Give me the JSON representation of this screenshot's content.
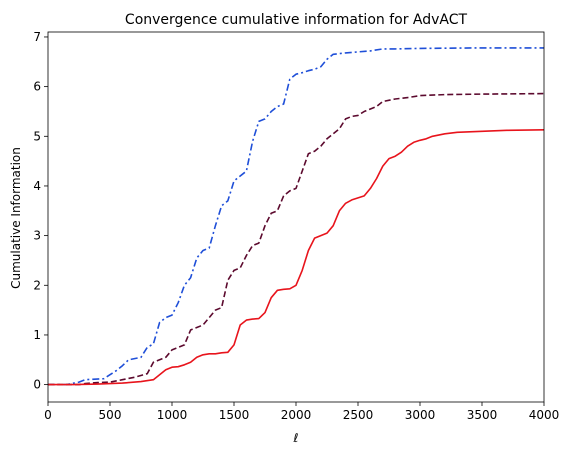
{
  "chart_data": {
    "type": "line",
    "title": "Convergence cumulative information for AdvACT",
    "xlabel": "ℓ",
    "ylabel": "Cumulative Information",
    "xlim": [
      0,
      4000
    ],
    "ylim": [
      -0.35,
      7.1
    ],
    "xticks": [
      0,
      500,
      1000,
      1500,
      2000,
      2500,
      3000,
      3500,
      4000
    ],
    "yticks": [
      0,
      1,
      2,
      3,
      4,
      5,
      6,
      7
    ],
    "grid": false,
    "legend": "none",
    "series": [
      {
        "color": "#1f4fd8",
        "style": "dashdot",
        "points": [
          [
            0,
            0
          ],
          [
            150,
            0
          ],
          [
            250,
            0.05
          ],
          [
            300,
            0.1
          ],
          [
            450,
            0.12
          ],
          [
            500,
            0.2
          ],
          [
            550,
            0.28
          ],
          [
            600,
            0.38
          ],
          [
            650,
            0.5
          ],
          [
            750,
            0.55
          ],
          [
            800,
            0.75
          ],
          [
            850,
            0.82
          ],
          [
            900,
            1.25
          ],
          [
            950,
            1.35
          ],
          [
            1000,
            1.4
          ],
          [
            1050,
            1.65
          ],
          [
            1100,
            2.0
          ],
          [
            1150,
            2.15
          ],
          [
            1200,
            2.55
          ],
          [
            1250,
            2.7
          ],
          [
            1300,
            2.75
          ],
          [
            1350,
            3.2
          ],
          [
            1400,
            3.6
          ],
          [
            1450,
            3.7
          ],
          [
            1500,
            4.1
          ],
          [
            1550,
            4.2
          ],
          [
            1600,
            4.3
          ],
          [
            1650,
            4.9
          ],
          [
            1700,
            5.3
          ],
          [
            1750,
            5.35
          ],
          [
            1800,
            5.5
          ],
          [
            1850,
            5.6
          ],
          [
            1900,
            5.65
          ],
          [
            1950,
            6.15
          ],
          [
            2000,
            6.25
          ],
          [
            2050,
            6.28
          ],
          [
            2100,
            6.32
          ],
          [
            2150,
            6.35
          ],
          [
            2200,
            6.4
          ],
          [
            2250,
            6.55
          ],
          [
            2300,
            6.65
          ],
          [
            2400,
            6.68
          ],
          [
            2500,
            6.7
          ],
          [
            2600,
            6.72
          ],
          [
            2700,
            6.76
          ],
          [
            2800,
            6.76
          ],
          [
            3000,
            6.77
          ],
          [
            3500,
            6.78
          ],
          [
            4000,
            6.78
          ]
        ]
      },
      {
        "color": "#5c0a2e",
        "style": "dashed",
        "points": [
          [
            0,
            0
          ],
          [
            250,
            0
          ],
          [
            300,
            0.02
          ],
          [
            400,
            0.04
          ],
          [
            500,
            0.05
          ],
          [
            600,
            0.1
          ],
          [
            700,
            0.15
          ],
          [
            800,
            0.22
          ],
          [
            850,
            0.45
          ],
          [
            900,
            0.5
          ],
          [
            950,
            0.55
          ],
          [
            1000,
            0.7
          ],
          [
            1050,
            0.75
          ],
          [
            1100,
            0.8
          ],
          [
            1150,
            1.1
          ],
          [
            1200,
            1.15
          ],
          [
            1250,
            1.2
          ],
          [
            1300,
            1.35
          ],
          [
            1350,
            1.5
          ],
          [
            1400,
            1.55
          ],
          [
            1450,
            2.1
          ],
          [
            1500,
            2.3
          ],
          [
            1550,
            2.35
          ],
          [
            1600,
            2.6
          ],
          [
            1650,
            2.8
          ],
          [
            1700,
            2.85
          ],
          [
            1750,
            3.2
          ],
          [
            1800,
            3.45
          ],
          [
            1850,
            3.5
          ],
          [
            1900,
            3.8
          ],
          [
            1950,
            3.9
          ],
          [
            2000,
            3.95
          ],
          [
            2050,
            4.3
          ],
          [
            2100,
            4.65
          ],
          [
            2150,
            4.7
          ],
          [
            2200,
            4.8
          ],
          [
            2250,
            4.95
          ],
          [
            2300,
            5.05
          ],
          [
            2350,
            5.15
          ],
          [
            2400,
            5.35
          ],
          [
            2450,
            5.4
          ],
          [
            2500,
            5.42
          ],
          [
            2550,
            5.5
          ],
          [
            2600,
            5.55
          ],
          [
            2650,
            5.6
          ],
          [
            2700,
            5.7
          ],
          [
            2800,
            5.75
          ],
          [
            2900,
            5.78
          ],
          [
            3000,
            5.82
          ],
          [
            3200,
            5.84
          ],
          [
            3500,
            5.85
          ],
          [
            4000,
            5.86
          ]
        ]
      },
      {
        "color": "#e8141c",
        "style": "solid",
        "points": [
          [
            0,
            0
          ],
          [
            200,
            0
          ],
          [
            400,
            0.01
          ],
          [
            600,
            0.03
          ],
          [
            750,
            0.06
          ],
          [
            850,
            0.1
          ],
          [
            900,
            0.2
          ],
          [
            950,
            0.3
          ],
          [
            1000,
            0.35
          ],
          [
            1050,
            0.36
          ],
          [
            1100,
            0.4
          ],
          [
            1150,
            0.45
          ],
          [
            1200,
            0.55
          ],
          [
            1250,
            0.6
          ],
          [
            1300,
            0.62
          ],
          [
            1350,
            0.62
          ],
          [
            1400,
            0.64
          ],
          [
            1450,
            0.65
          ],
          [
            1500,
            0.8
          ],
          [
            1550,
            1.2
          ],
          [
            1600,
            1.3
          ],
          [
            1650,
            1.32
          ],
          [
            1700,
            1.33
          ],
          [
            1750,
            1.45
          ],
          [
            1800,
            1.75
          ],
          [
            1850,
            1.9
          ],
          [
            1900,
            1.92
          ],
          [
            1950,
            1.93
          ],
          [
            2000,
            2.0
          ],
          [
            2050,
            2.3
          ],
          [
            2100,
            2.7
          ],
          [
            2150,
            2.95
          ],
          [
            2200,
            3.0
          ],
          [
            2250,
            3.05
          ],
          [
            2300,
            3.2
          ],
          [
            2350,
            3.5
          ],
          [
            2400,
            3.65
          ],
          [
            2450,
            3.72
          ],
          [
            2500,
            3.76
          ],
          [
            2550,
            3.8
          ],
          [
            2600,
            3.95
          ],
          [
            2650,
            4.15
          ],
          [
            2700,
            4.4
          ],
          [
            2750,
            4.55
          ],
          [
            2800,
            4.6
          ],
          [
            2850,
            4.68
          ],
          [
            2900,
            4.8
          ],
          [
            2950,
            4.88
          ],
          [
            3000,
            4.92
          ],
          [
            3050,
            4.95
          ],
          [
            3100,
            5.0
          ],
          [
            3200,
            5.05
          ],
          [
            3300,
            5.08
          ],
          [
            3500,
            5.1
          ],
          [
            3700,
            5.12
          ],
          [
            4000,
            5.13
          ]
        ]
      }
    ]
  }
}
